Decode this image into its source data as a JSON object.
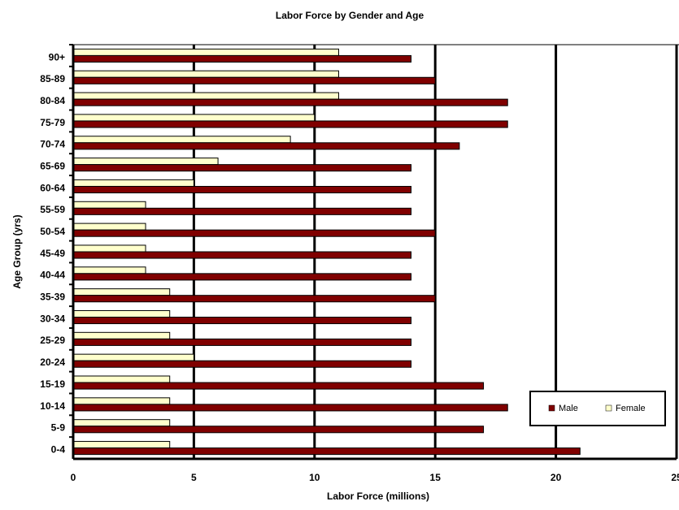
{
  "chart_data": {
    "type": "hbar",
    "title": "Labor Force by Gender and Age",
    "x_label": "Labor Force (millions)",
    "y_label": "Age Group (yrs)",
    "categories": [
      "90+",
      "85-89",
      "80-84",
      "75-79",
      "70-74",
      "65-69",
      "60-64",
      "55-59",
      "50-54",
      "45-49",
      "40-44",
      "35-39",
      "30-34",
      "25-29",
      "20-24",
      "15-19",
      "10-14",
      "5-9",
      "0-4"
    ],
    "series": [
      {
        "name": "Male",
        "color": "#800000",
        "values": [
          14,
          15,
          18,
          18,
          16,
          14,
          14,
          14,
          15,
          14,
          14,
          15,
          14,
          14,
          14,
          17,
          18,
          17,
          21
        ]
      },
      {
        "name": "Female",
        "color": "#ffffcc",
        "values": [
          11,
          11,
          11,
          10,
          9,
          6,
          5,
          3,
          3,
          3,
          3,
          4,
          4,
          4,
          5,
          4,
          4,
          4,
          4
        ]
      }
    ],
    "xlim": [
      0,
      25
    ],
    "xticks": [
      0,
      5,
      10,
      15,
      20,
      25
    ],
    "grid": true
  }
}
